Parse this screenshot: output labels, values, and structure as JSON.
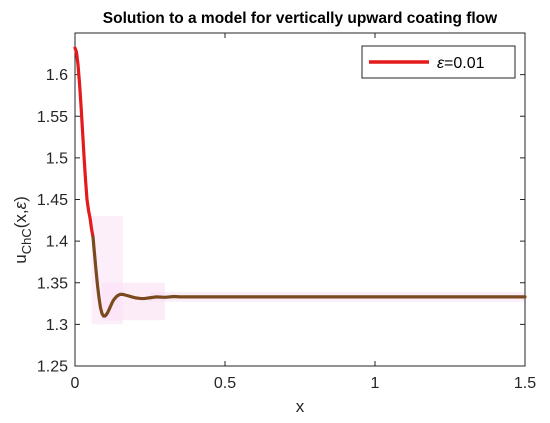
{
  "chart_data": {
    "type": "line",
    "title": "Solution to a model for vertically upward coating flow",
    "xlabel": "x",
    "ylabel": "u_{ChC}(x,ε)",
    "ylabel_parts": {
      "base": "u",
      "sub": "ChC",
      "args": "(x,",
      "eps": "ε",
      "close": ")"
    },
    "xlim": [
      0,
      1.5
    ],
    "ylim": [
      1.25,
      1.65
    ],
    "x_ticks": [
      0,
      0.5,
      1,
      1.5
    ],
    "x_tick_labels": [
      "0",
      "0.5",
      "1",
      "1.5"
    ],
    "y_ticks": [
      1.25,
      1.3,
      1.35,
      1.4,
      1.45,
      1.5,
      1.55,
      1.6
    ],
    "y_tick_labels": [
      "1.25",
      "1.3",
      "1.35",
      "1.4",
      "1.45",
      "1.5",
      "1.55",
      "1.6"
    ],
    "grid": false,
    "legend_position": "top-right",
    "legend_entries": [
      {
        "label_prefix": "ε",
        "label_suffix": "=0.01",
        "color": "#e41a1c"
      }
    ],
    "colors": {
      "series_red": "#e41a1c",
      "series_dark": "#7a4a1e",
      "pink_band": "#f9dcf3"
    },
    "series": [
      {
        "name": "ε=0.01",
        "color": "#e41a1c",
        "x": [
          0,
          0.005,
          0.01,
          0.015,
          0.02,
          0.025,
          0.03,
          0.035,
          0.04,
          0.045,
          0.05,
          0.055,
          0.06
        ],
        "y": [
          1.632,
          1.627,
          1.612,
          1.59,
          1.563,
          1.533,
          1.502,
          1.474,
          1.45,
          1.437,
          1.428,
          1.415,
          1.405
        ]
      },
      {
        "name": "ε=0.01",
        "color": "#7a4a1e",
        "x": [
          0.06,
          0.065,
          0.07,
          0.075,
          0.08,
          0.085,
          0.09,
          0.095,
          0.1,
          0.105,
          0.11,
          0.115,
          0.12,
          0.125,
          0.13,
          0.14,
          0.15,
          0.16,
          0.17,
          0.18,
          0.19,
          0.2,
          0.21,
          0.22,
          0.23,
          0.24,
          0.25,
          0.27,
          0.3,
          0.33,
          0.35,
          0.4,
          0.5,
          0.6,
          0.8,
          1.0,
          1.2,
          1.4,
          1.5
        ],
        "y": [
          1.405,
          1.385,
          1.365,
          1.347,
          1.332,
          1.32,
          1.313,
          1.31,
          1.31,
          1.312,
          1.315,
          1.319,
          1.323,
          1.327,
          1.33,
          1.334,
          1.336,
          1.336,
          1.335,
          1.334,
          1.333,
          1.332,
          1.3315,
          1.331,
          1.331,
          1.3315,
          1.332,
          1.333,
          1.3325,
          1.3335,
          1.333,
          1.333,
          1.333,
          1.333,
          1.333,
          1.333,
          1.333,
          1.333,
          1.333
        ]
      }
    ]
  }
}
